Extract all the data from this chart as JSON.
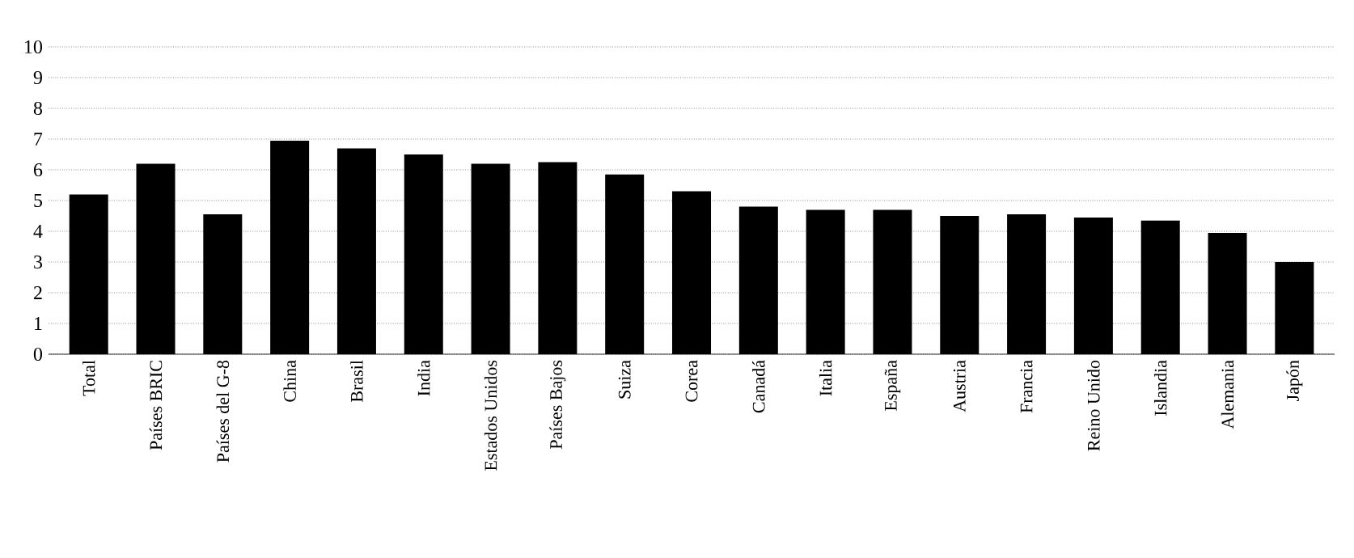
{
  "chart_data": {
    "type": "bar",
    "categories": [
      "Total",
      "Países BRIC",
      "Países del G-8",
      "China",
      "Brasil",
      "India",
      "Estados Unidos",
      "Países Bajos",
      "Suiza",
      "Corea",
      "Canadá",
      "Italia",
      "España",
      "Austria",
      "Francia",
      "Reino Unido",
      "Islandia",
      "Alemania",
      "Japón"
    ],
    "values": [
      5.2,
      6.2,
      4.55,
      6.95,
      6.7,
      6.5,
      6.2,
      6.25,
      5.85,
      5.3,
      4.8,
      4.7,
      4.7,
      4.5,
      4.55,
      4.45,
      4.35,
      3.95,
      3.0
    ],
    "color": "#000000",
    "ylim": [
      0,
      10
    ],
    "yticks": [
      0,
      1,
      2,
      3,
      4,
      5,
      6,
      7,
      8,
      9,
      10
    ],
    "grid": "y"
  }
}
